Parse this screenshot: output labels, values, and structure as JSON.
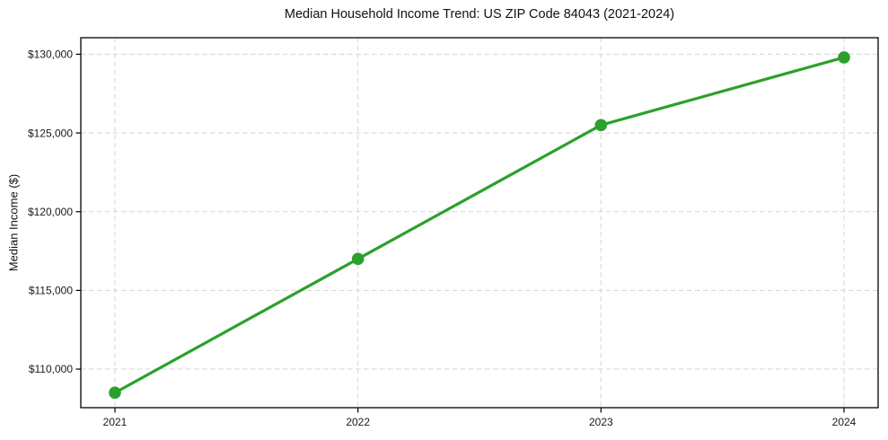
{
  "chart_data": {
    "type": "line",
    "title": "Median Household Income Trend: US ZIP Code 84043 (2021-2024)",
    "xlabel": "",
    "ylabel": "Median Income ($)",
    "categories": [
      "2021",
      "2022",
      "2023",
      "2024"
    ],
    "values": [
      108500,
      117000,
      125500,
      129800
    ],
    "yticks": [
      {
        "value": 110000,
        "label": "$110,000"
      },
      {
        "value": 115000,
        "label": "$115,000"
      },
      {
        "value": 120000,
        "label": "$120,000"
      },
      {
        "value": 125000,
        "label": "$125,000"
      },
      {
        "value": 130000,
        "label": "$130,000"
      }
    ],
    "ylim": [
      107550,
      131050
    ],
    "grid": true,
    "grid_style": "dashed",
    "legend_position": "none",
    "marker": "circle"
  },
  "style": {
    "line_color": "#2ca02c",
    "marker_color": "#2ca02c",
    "grid_color": "#d4d4d4",
    "axis_color": "#000000",
    "text_color": "#1a1a1a",
    "background": "#ffffff"
  }
}
